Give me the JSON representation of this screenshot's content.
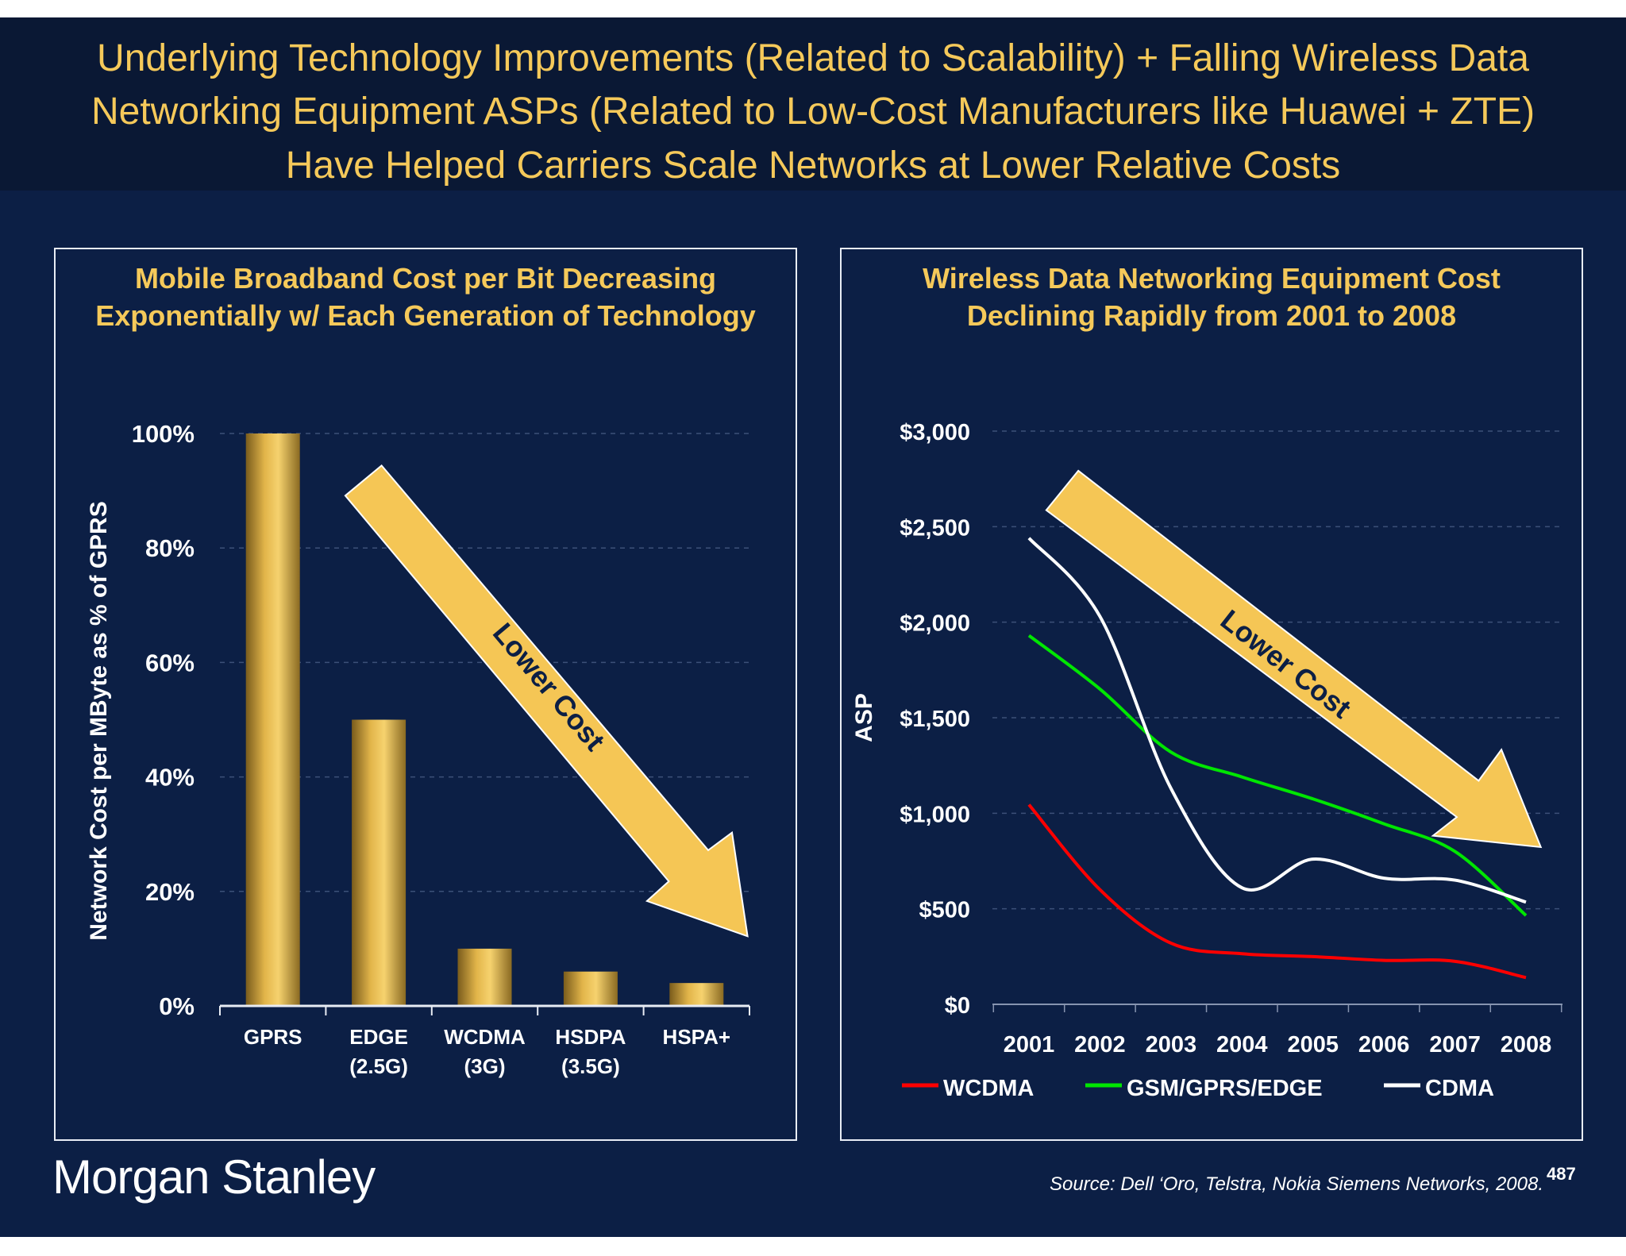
{
  "slide": {
    "title_lines": [
      "Underlying Technology Improvements (Related to Scalability) + Falling Wireless Data",
      "Networking Equipment ASPs (Related to Low-Cost Manufacturers like Huawei + ZTE)",
      "Have Helped Carriers Scale Networks at Lower Relative Costs"
    ],
    "logo": "Morgan Stanley",
    "source": "Source: Dell ‘Oro, Telstra, Nokia Siemens Networks, 2008.",
    "page_number": "487",
    "colors": {
      "background": "#0c1f45",
      "title": "#f5c95a",
      "arrow": "#f5c655"
    }
  },
  "chart_data": [
    {
      "type": "bar",
      "title_lines": [
        "Mobile Broadband Cost per Bit Decreasing",
        "Exponentially w/ Each Generation of Technology"
      ],
      "categories": [
        [
          "GPRS"
        ],
        [
          "EDGE",
          "(2.5G)"
        ],
        [
          "WCDMA",
          "(3G)"
        ],
        [
          "HSDPA",
          "(3.5G)"
        ],
        [
          "HSPA+"
        ]
      ],
      "values": [
        100,
        50,
        10,
        6,
        4
      ],
      "ylabel": "Network Cost per MByte as % of GPRS",
      "ylim": [
        0,
        100
      ],
      "yticks": [
        "0%",
        "20%",
        "40%",
        "60%",
        "80%",
        "100%"
      ],
      "grid": true,
      "annotation": "Lower Cost",
      "bar_color": "#e9bd4c"
    },
    {
      "type": "line",
      "title_lines": [
        "Wireless Data Networking Equipment Cost",
        "Declining Rapidly from 2001 to 2008"
      ],
      "x": [
        "2001",
        "2002",
        "2003",
        "2004",
        "2005",
        "2006",
        "2007",
        "2008"
      ],
      "series": [
        {
          "name": "WCDMA",
          "color": "#ff0000",
          "values": [
            1045,
            600,
            320,
            265,
            250,
            230,
            225,
            140
          ]
        },
        {
          "name": "GSM/GPRS/EDGE",
          "color": "#00e600",
          "values": [
            1930,
            1650,
            1320,
            1190,
            1075,
            945,
            800,
            465
          ]
        },
        {
          "name": "CDMA",
          "color": "#ffffff",
          "values": [
            2440,
            2030,
            1130,
            610,
            760,
            660,
            650,
            535
          ]
        }
      ],
      "ylabel": "ASP",
      "ylim": [
        0,
        3000
      ],
      "yticks": [
        "$0",
        "$500",
        "$1,000",
        "$1,500",
        "$2,000",
        "$2,500",
        "$3,000"
      ],
      "grid": true,
      "legend": "bottom",
      "annotation": "Lower Cost"
    }
  ]
}
